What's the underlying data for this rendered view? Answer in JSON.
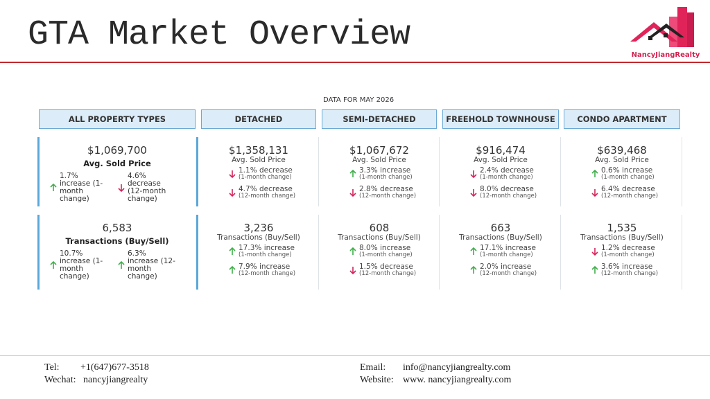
{
  "header": {
    "title": "GTA Market Overview",
    "logo": "NancyJiangRealty"
  },
  "table": {
    "caption": "DATA FOR MAY 2026",
    "columns": [
      "ALL PROPERTY TYPES",
      "DETACHED",
      "SEMI-DETACHED",
      "FREEHOLD TOWNHOUSE",
      "CONDO APARTMENT"
    ],
    "rows": [
      [
        {
          "value": "$1,069,700",
          "label": "Avg. Sold Price",
          "changes": [
            {
              "text": "1.7% increase",
              "period": "(1-month change)",
              "direction": "up"
            },
            {
              "text": "4.6% decrease",
              "period": "(12-month change)",
              "direction": "down"
            }
          ]
        },
        {
          "value": "$1,358,131",
          "label": "Avg. Sold Price",
          "changes": [
            {
              "text": "1.1% decrease",
              "period": "(1-month change)",
              "direction": "down"
            },
            {
              "text": "4.7% decrease",
              "period": "(12-month change)",
              "direction": "down"
            }
          ]
        },
        {
          "value": "$1,067,672",
          "label": "Avg. Sold Price",
          "changes": [
            {
              "text": "3.3% increase",
              "period": "(1-month change)",
              "direction": "up"
            },
            {
              "text": "2.8% decrease",
              "period": "(12-month change)",
              "direction": "down"
            }
          ]
        },
        {
          "value": "$916,474",
          "label": "Avg. Sold Price",
          "changes": [
            {
              "text": "2.4% decrease",
              "period": "(1-month change)",
              "direction": "down"
            },
            {
              "text": "8.0% decrease",
              "period": "(12-month change)",
              "direction": "down"
            }
          ]
        },
        {
          "value": "$639,468",
          "label": "Avg. Sold Price",
          "changes": [
            {
              "text": "0.6% increase",
              "period": "(1-month change)",
              "direction": "up"
            },
            {
              "text": "6.4% decrease",
              "period": "(12-month change)",
              "direction": "down"
            }
          ]
        }
      ],
      [
        {
          "value": "6,583",
          "label": "Transactions (Buy/Sell)",
          "changes": [
            {
              "text": "10.7% increase",
              "period": "(1-month change)",
              "direction": "up"
            },
            {
              "text": "6.3% increase",
              "period": "(12-month change)",
              "direction": "up"
            }
          ]
        },
        {
          "value": "3,236",
          "label": "Transactions (Buy/Sell)",
          "changes": [
            {
              "text": "17.3% increase",
              "period": "(1-month change)",
              "direction": "up"
            },
            {
              "text": "7.9% increase",
              "period": "(12-month change)",
              "direction": "up"
            }
          ]
        },
        {
          "value": "608",
          "label": "Transactions (Buy/Sell)",
          "changes": [
            {
              "text": "8.0% increase",
              "period": "(1-month change)",
              "direction": "up"
            },
            {
              "text": "1.5% decrease",
              "period": "(12-month change)",
              "direction": "down"
            }
          ]
        },
        {
          "value": "663",
          "label": "Transactions (Buy/Sell)",
          "changes": [
            {
              "text": "17.1% increase",
              "period": "(1-month change)",
              "direction": "up"
            },
            {
              "text": "2.0% increase",
              "period": "(12-month change)",
              "direction": "up"
            }
          ]
        },
        {
          "value": "1,535",
          "label": "Transactions (Buy/Sell)",
          "changes": [
            {
              "text": "1.2% decrease",
              "period": "(1-month change)",
              "direction": "down"
            },
            {
              "text": "3.6% increase",
              "period": "(12-month change)",
              "direction": "up"
            }
          ]
        }
      ]
    ]
  },
  "footer": {
    "tel_label": "Tel:",
    "tel": "+1(647)677-3518",
    "wechat_label": "Wechat:",
    "wechat": "nancyjiangrealty",
    "email_label": "Email:",
    "email": "info@nancyjiangrealty.com",
    "website_label": "Website:",
    "website": "www. nancyjiangrealty.com"
  }
}
